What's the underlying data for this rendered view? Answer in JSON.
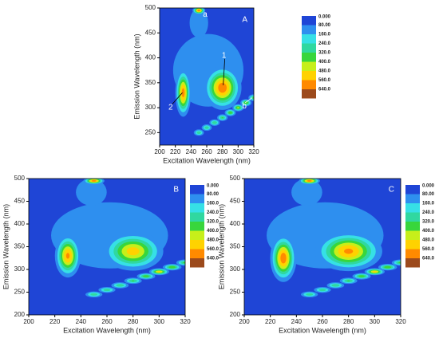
{
  "chart_data": [
    {
      "type": "contour",
      "panel": "A",
      "xlabel": "Excitation Wavelength (nm)",
      "ylabel": "Emission Wavelength (nm)",
      "xlim": [
        200,
        320
      ],
      "ylim": [
        225,
        500
      ],
      "xticks": [
        200,
        220,
        240,
        260,
        280,
        300,
        320
      ],
      "yticks": [
        250,
        300,
        350,
        400,
        450,
        500
      ],
      "levels": [
        {
          "value": 0,
          "label": "0.000",
          "color": "#1f45d6"
        },
        {
          "value": 80,
          "label": "80.00",
          "color": "#2e8fef"
        },
        {
          "value": 160,
          "label": "160.0",
          "color": "#36e0e6"
        },
        {
          "value": 240,
          "label": "240.0",
          "color": "#30d8a0"
        },
        {
          "value": 320,
          "label": "320.0",
          "color": "#38d63c"
        },
        {
          "value": 400,
          "label": "400.0",
          "color": "#c6ef1a"
        },
        {
          "value": 480,
          "label": "480.0",
          "color": "#ffd200"
        },
        {
          "value": 560,
          "label": "560.0",
          "color": "#ff8a00"
        },
        {
          "value": 640,
          "label": "640.0",
          "color": "#9c4a1c"
        }
      ],
      "peaks": [
        {
          "x": 262,
          "y": 375,
          "value": 150,
          "sx": 40,
          "sy": 65
        },
        {
          "x": 250,
          "y": 470,
          "value": 130,
          "sx": 12,
          "sy": 30
        },
        {
          "x": 280,
          "y": 340,
          "value": 620,
          "sx": 12,
          "sy": 22
        },
        {
          "x": 230,
          "y": 330,
          "value": 600,
          "sx": 5,
          "sy": 24
        },
        {
          "x": 250,
          "y": 495,
          "value": 620,
          "sx": 4,
          "sy": 4
        },
        {
          "x": 250,
          "y": 250,
          "value": 300,
          "sx": 4,
          "sy": 4
        },
        {
          "x": 260,
          "y": 260,
          "value": 300,
          "sx": 4,
          "sy": 4
        },
        {
          "x": 270,
          "y": 270,
          "value": 320,
          "sx": 4,
          "sy": 4
        },
        {
          "x": 280,
          "y": 280,
          "value": 330,
          "sx": 4,
          "sy": 4
        },
        {
          "x": 290,
          "y": 290,
          "value": 380,
          "sx": 4,
          "sy": 4
        },
        {
          "x": 300,
          "y": 300,
          "value": 420,
          "sx": 4,
          "sy": 4
        },
        {
          "x": 310,
          "y": 310,
          "value": 400,
          "sx": 4,
          "sy": 4
        },
        {
          "x": 320,
          "y": 320,
          "value": 350,
          "sx": 4,
          "sy": 4
        }
      ],
      "annotations": [
        "a",
        "b",
        "1",
        "2"
      ]
    },
    {
      "type": "contour",
      "panel": "B",
      "xlabel": "Excitation Wavelength (nm)",
      "ylabel": "Emission Wavelength (nm)",
      "xlim": [
        200,
        320
      ],
      "ylim": [
        200,
        500
      ],
      "xticks": [
        200,
        220,
        240,
        260,
        280,
        300,
        320
      ],
      "yticks": [
        200,
        250,
        300,
        350,
        400,
        450,
        500
      ],
      "levels": [
        {
          "value": 0,
          "label": "0.000",
          "color": "#1f45d6"
        },
        {
          "value": 80,
          "label": "80.00",
          "color": "#2e8fef"
        },
        {
          "value": 160,
          "label": "160.0",
          "color": "#36e0e6"
        },
        {
          "value": 240,
          "label": "240.0",
          "color": "#30d8a0"
        },
        {
          "value": 320,
          "label": "320.0",
          "color": "#38d63c"
        },
        {
          "value": 400,
          "label": "400.0",
          "color": "#c6ef1a"
        },
        {
          "value": 480,
          "label": "480.0",
          "color": "#ffd200"
        },
        {
          "value": 560,
          "label": "560.0",
          "color": "#ff8a00"
        },
        {
          "value": 640,
          "label": "640.0",
          "color": "#9c4a1c"
        }
      ],
      "peaks": [
        {
          "x": 262,
          "y": 375,
          "value": 150,
          "sx": 40,
          "sy": 65
        },
        {
          "x": 248,
          "y": 470,
          "value": 130,
          "sx": 12,
          "sy": 30
        },
        {
          "x": 280,
          "y": 340,
          "value": 520,
          "sx": 12,
          "sy": 22
        },
        {
          "x": 230,
          "y": 330,
          "value": 580,
          "sx": 5,
          "sy": 24
        },
        {
          "x": 250,
          "y": 495,
          "value": 620,
          "sx": 4,
          "sy": 4
        },
        {
          "x": 250,
          "y": 245,
          "value": 300,
          "sx": 4,
          "sy": 4
        },
        {
          "x": 260,
          "y": 255,
          "value": 300,
          "sx": 4,
          "sy": 4
        },
        {
          "x": 270,
          "y": 265,
          "value": 320,
          "sx": 4,
          "sy": 4
        },
        {
          "x": 280,
          "y": 275,
          "value": 330,
          "sx": 4,
          "sy": 4
        },
        {
          "x": 290,
          "y": 285,
          "value": 380,
          "sx": 4,
          "sy": 4
        },
        {
          "x": 300,
          "y": 295,
          "value": 500,
          "sx": 4,
          "sy": 4
        },
        {
          "x": 310,
          "y": 305,
          "value": 400,
          "sx": 4,
          "sy": 4
        },
        {
          "x": 320,
          "y": 315,
          "value": 350,
          "sx": 4,
          "sy": 4
        }
      ]
    },
    {
      "type": "contour",
      "panel": "C",
      "xlabel": "Excitation Wavelength (nm)",
      "ylabel": "Emission Wavelength (nm)",
      "xlim": [
        200,
        320
      ],
      "ylim": [
        200,
        500
      ],
      "xticks": [
        200,
        220,
        240,
        260,
        280,
        300,
        320
      ],
      "yticks": [
        200,
        250,
        300,
        350,
        400,
        450,
        500
      ],
      "levels": [
        {
          "value": 0,
          "label": "0.000",
          "color": "#1f45d6"
        },
        {
          "value": 80,
          "label": "80.00",
          "color": "#2e8fef"
        },
        {
          "value": 160,
          "label": "160.0",
          "color": "#36e0e6"
        },
        {
          "value": 240,
          "label": "240.0",
          "color": "#30d8a0"
        },
        {
          "value": 320,
          "label": "320.0",
          "color": "#38d63c"
        },
        {
          "value": 400,
          "label": "400.0",
          "color": "#c6ef1a"
        },
        {
          "value": 480,
          "label": "480.0",
          "color": "#ffd200"
        },
        {
          "value": 560,
          "label": "560.0",
          "color": "#ff8a00"
        },
        {
          "value": 640,
          "label": "640.0",
          "color": "#9c4a1c"
        }
      ],
      "peaks": [
        {
          "x": 262,
          "y": 375,
          "value": 150,
          "sx": 40,
          "sy": 65
        },
        {
          "x": 248,
          "y": 470,
          "value": 130,
          "sx": 12,
          "sy": 30
        },
        {
          "x": 280,
          "y": 340,
          "value": 580,
          "sx": 13,
          "sy": 22
        },
        {
          "x": 230,
          "y": 325,
          "value": 620,
          "sx": 5,
          "sy": 26
        },
        {
          "x": 250,
          "y": 495,
          "value": 620,
          "sx": 4,
          "sy": 4
        },
        {
          "x": 250,
          "y": 245,
          "value": 300,
          "sx": 4,
          "sy": 4
        },
        {
          "x": 260,
          "y": 255,
          "value": 300,
          "sx": 4,
          "sy": 4
        },
        {
          "x": 270,
          "y": 265,
          "value": 320,
          "sx": 4,
          "sy": 4
        },
        {
          "x": 280,
          "y": 275,
          "value": 330,
          "sx": 4,
          "sy": 4
        },
        {
          "x": 290,
          "y": 285,
          "value": 380,
          "sx": 4,
          "sy": 4
        },
        {
          "x": 300,
          "y": 295,
          "value": 520,
          "sx": 4,
          "sy": 4
        },
        {
          "x": 310,
          "y": 305,
          "value": 400,
          "sx": 4,
          "sy": 4
        },
        {
          "x": 320,
          "y": 315,
          "value": 350,
          "sx": 4,
          "sy": 4
        }
      ]
    }
  ]
}
